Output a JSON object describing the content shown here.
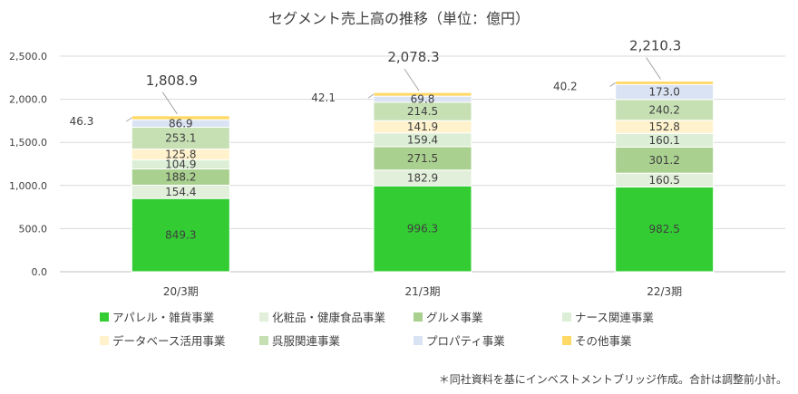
{
  "chart_data": {
    "type": "bar",
    "stacked": true,
    "title": "セグメント売上高の推移（単位：億円）",
    "categories": [
      "20/3期",
      "21/3期",
      "22/3期"
    ],
    "ylim": [
      0,
      2500
    ],
    "yticks": [
      "0.0",
      "500.0",
      "1,000.0",
      "1,500.0",
      "2,000.0",
      "2,500.0"
    ],
    "grid": true,
    "legend_position": "bottom",
    "series": [
      {
        "name": "アパレル・雑貨事業",
        "color": "#33cc33",
        "values": [
          849.3,
          996.3,
          982.5
        ],
        "labels": [
          "849.3",
          "996.3",
          "982.5"
        ]
      },
      {
        "name": "化粧品・健康食品事業",
        "color": "#e2efda",
        "values": [
          154.4,
          182.9,
          160.5
        ],
        "labels": [
          "154.4",
          "182.9",
          "160.5"
        ]
      },
      {
        "name": "グルメ事業",
        "color": "#a9d08e",
        "values": [
          188.2,
          271.5,
          301.2
        ],
        "labels": [
          "188.2",
          "271.5",
          "301.2"
        ]
      },
      {
        "name": "ナース関連事業",
        "color": "#dcefd6",
        "values": [
          104.9,
          159.4,
          160.1
        ],
        "labels": [
          "104.9",
          "159.4",
          "160.1"
        ]
      },
      {
        "name": "データベース活用事業",
        "color": "#fff2cc",
        "values": [
          125.8,
          141.9,
          152.8
        ],
        "labels": [
          "125.8",
          "141.9",
          "152.8"
        ]
      },
      {
        "name": "呉服関連事業",
        "color": "#c6e0b4",
        "values": [
          253.1,
          214.5,
          240.2
        ],
        "labels": [
          "253.1",
          "214.5",
          "240.2"
        ]
      },
      {
        "name": "プロパティ事業",
        "color": "#dae3f3",
        "values": [
          86.9,
          69.8,
          173.0
        ],
        "labels": [
          "86.9",
          "69.8",
          "173.0"
        ]
      },
      {
        "name": "その他事業",
        "color": "#ffd966",
        "values": [
          46.3,
          42.1,
          40.2
        ],
        "labels": [
          "46.3",
          "42.1",
          "40.2"
        ]
      }
    ],
    "totals": [
      "1,808.9",
      "2,078.3",
      "2,210.3"
    ]
  },
  "note": "＊同社資料を基にインベストメントブリッジ作成。合計は調整前小計。"
}
